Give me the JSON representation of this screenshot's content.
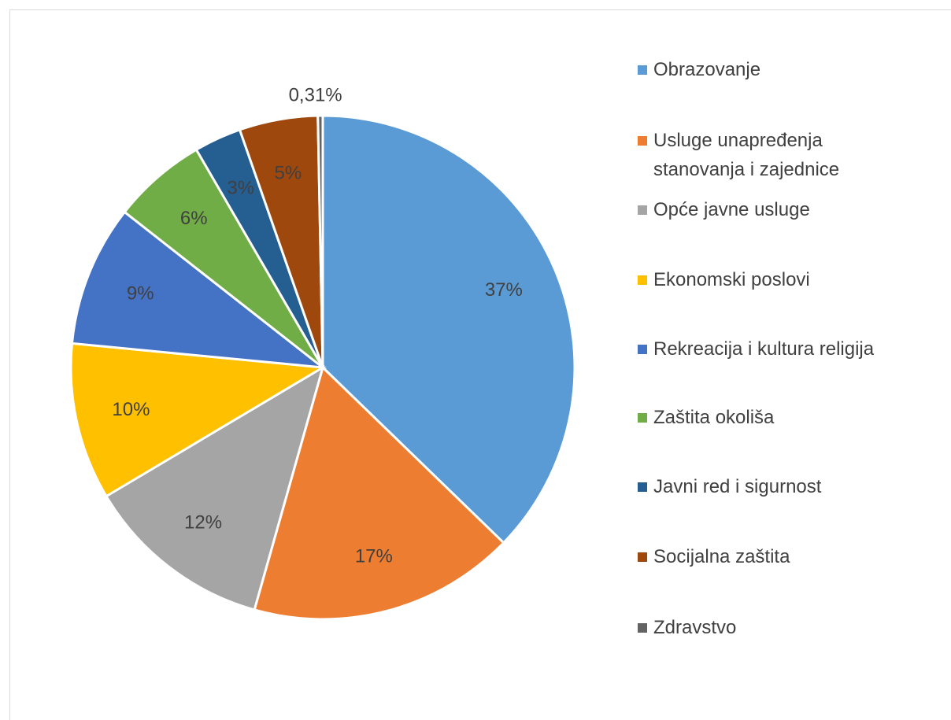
{
  "chart_data": {
    "type": "pie",
    "categories": [
      "Obrazovanje",
      "Usluge unapređenja stanovanja i zajednice",
      "Opće javne usluge",
      "Ekonomski poslovi",
      "Rekreacija i kultura religija",
      "Zaštita okoliša",
      "Javni red i sigurnost",
      "Socijalna zaštita",
      "Zdravstvo"
    ],
    "values": [
      37,
      17,
      12,
      10,
      9,
      6,
      3,
      5,
      0.31
    ],
    "value_labels": [
      "37%",
      "17%",
      "12%",
      "10%",
      "9%",
      "6%",
      "3%",
      "5%",
      "0,31%"
    ],
    "colors": [
      "#5b9bd5",
      "#ed7d31",
      "#a5a5a5",
      "#ffc000",
      "#4472c4",
      "#70ad47",
      "#255e91",
      "#9e480e",
      "#636363"
    ],
    "legend": "right"
  }
}
